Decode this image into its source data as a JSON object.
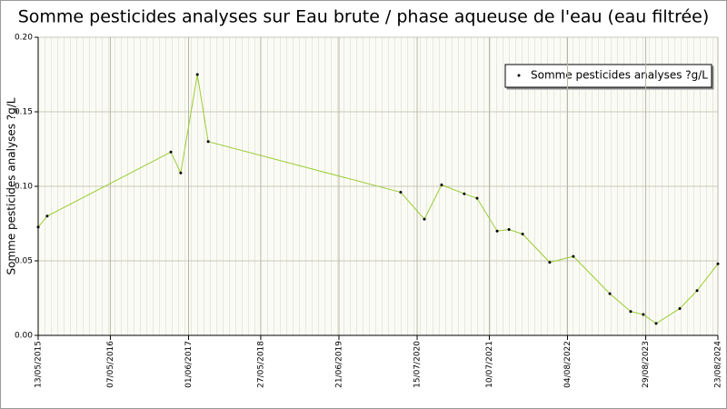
{
  "chart_data": {
    "type": "line",
    "title": "Somme pesticides analyses sur Eau brute / phase aqueuse de l'eau (eau filtrée)",
    "y_label": "Somme pesticides analyses ?g/L",
    "x": [
      "2015-05-13",
      "2015-06-27",
      "2017-03-05",
      "2017-04-23",
      "2017-07-15",
      "2017-09-07",
      "2020-04-24",
      "2020-08-20",
      "2020-11-14",
      "2021-03-07",
      "2021-05-10",
      "2021-08-18",
      "2021-10-16",
      "2021-12-23",
      "2022-05-07",
      "2022-09-02",
      "2023-03-03",
      "2023-06-15",
      "2023-08-17",
      "2023-10-20",
      "2024-02-15",
      "2024-05-11",
      "2024-08-23"
    ],
    "series": [
      {
        "name": "Somme pesticides analyses ?g/L",
        "color": "#9acd32",
        "values": [
          0.0726,
          0.08,
          0.123,
          0.109,
          0.175,
          0.13,
          0.096,
          0.078,
          0.101,
          0.095,
          0.092,
          0.07,
          0.071,
          0.068,
          0.049,
          0.053,
          0.028,
          0.016,
          0.014,
          0.008,
          0.018,
          0.03,
          0.048
        ]
      }
    ],
    "xlim": [
      "2015-05-13",
      "2024-08-23"
    ],
    "xticks": [
      {
        "value": "2015-05-13",
        "label": "13/05/2015"
      },
      {
        "value": "2016-05-07",
        "label": "07/05/2016"
      },
      {
        "value": "2017-06-01",
        "label": "01/06/2017"
      },
      {
        "value": "2018-05-27",
        "label": "27/05/2018"
      },
      {
        "value": "2019-06-21",
        "label": "21/06/2019"
      },
      {
        "value": "2020-07-15",
        "label": "15/07/2020"
      },
      {
        "value": "2021-07-10",
        "label": "10/07/2021"
      },
      {
        "value": "2022-08-04",
        "label": "04/08/2022"
      },
      {
        "value": "2023-08-29",
        "label": "29/08/2023"
      },
      {
        "value": "2024-08-23",
        "label": "23/08/2024"
      }
    ],
    "ylim": [
      0,
      0.2
    ],
    "yticks": [
      {
        "value": 0,
        "label": "0.00"
      },
      0.05,
      {
        "value": 0.1,
        "label": "0.10"
      },
      0.15,
      {
        "value": 0.2,
        "label": "0.20"
      }
    ],
    "grid": true,
    "legend": "top-right"
  }
}
